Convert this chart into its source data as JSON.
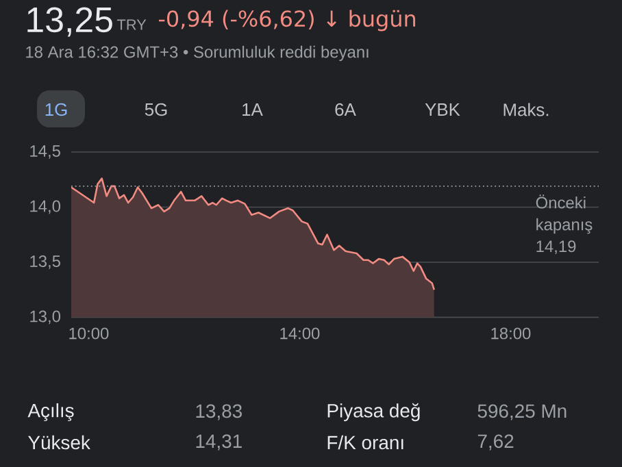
{
  "chart_data": {
    "type": "area",
    "title": "13,25",
    "subtitle": "18 Ara 16:32 GMT+3 • Sorumluluk reddi beyanı",
    "annotations": [
      "TRY",
      "-0,94 (-%6,62) ↓ bugün",
      "1G",
      "5G",
      "1A",
      "6A",
      "YBK",
      "Maks.",
      "Açılış",
      "13,83",
      "Piyasa değ",
      "596,25 Mn",
      "Yüksek",
      "14,31",
      "F/K oranı",
      "7,62"
    ],
    "x": [
      9.67,
      10.1,
      10.17,
      10.25,
      10.34,
      10.43,
      10.49,
      10.58,
      10.67,
      10.75,
      10.84,
      10.93,
      11.01,
      11.19,
      11.32,
      11.43,
      11.53,
      11.62,
      11.75,
      11.84,
      12.01,
      12.14,
      12.27,
      12.35,
      12.42,
      12.53,
      12.61,
      12.7,
      12.83,
      12.96,
      13.09,
      13.22,
      13.44,
      13.61,
      13.78,
      13.87,
      14.04,
      14.15,
      14.35,
      14.43,
      14.52,
      14.65,
      14.75,
      14.87,
      15.08,
      15.21,
      15.3,
      15.39,
      15.5,
      15.6,
      15.69,
      15.79,
      15.95,
      16.08,
      16.16,
      16.23,
      16.29,
      16.4,
      16.51,
      16.55
    ],
    "series": [
      {
        "color": "#f28b82",
        "values": [
          14.18,
          14.04,
          14.21,
          14.26,
          14.1,
          14.19,
          14.19,
          14.08,
          14.11,
          14.04,
          14.09,
          14.18,
          14.13,
          13.99,
          14.02,
          13.96,
          13.99,
          14.06,
          14.14,
          14.06,
          14.06,
          14.1,
          14.02,
          14.04,
          14.02,
          14.08,
          14.06,
          14.04,
          14.06,
          14.03,
          13.93,
          13.95,
          13.9,
          13.96,
          13.99,
          13.97,
          13.87,
          13.85,
          13.67,
          13.66,
          13.75,
          13.61,
          13.65,
          13.6,
          13.58,
          13.52,
          13.52,
          13.49,
          13.53,
          13.52,
          13.48,
          13.53,
          13.55,
          13.5,
          13.42,
          13.49,
          13.46,
          13.35,
          13.31,
          13.25
        ]
      }
    ],
    "xlim": [
      9.67,
      19.67
    ],
    "ylim": [
      13.0,
      14.5
    ],
    "xticks": [
      {
        "value": 10,
        "label": "10:00"
      },
      {
        "value": 14,
        "label": "14:00"
      },
      {
        "value": 18,
        "label": "18:00"
      }
    ],
    "yticks": [
      {
        "value": 13.0,
        "label": "13,0"
      },
      {
        "value": 13.5,
        "label": "13,5"
      },
      {
        "value": 14.0,
        "label": "14,0"
      },
      {
        "value": 14.5,
        "label": "14,5"
      }
    ],
    "grid": "y",
    "ref_lines": [
      {
        "axis": "y",
        "value": 14.19,
        "label": "Önceki kapanış 14,19",
        "color": "#9aa0a6",
        "line_style": "dotted"
      }
    ]
  }
}
